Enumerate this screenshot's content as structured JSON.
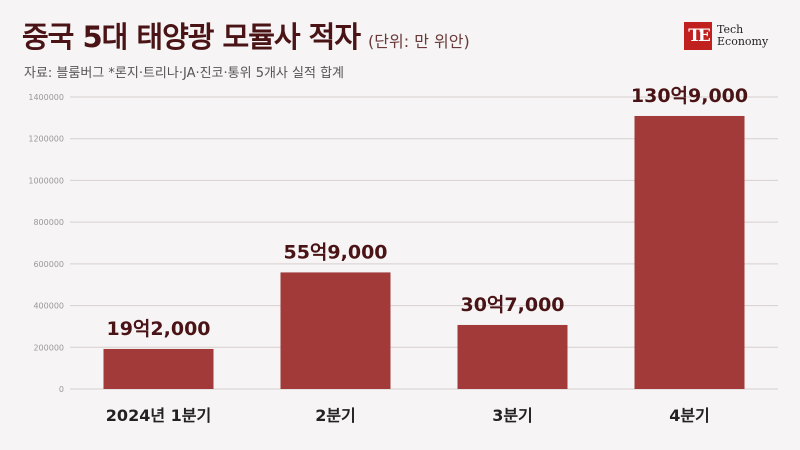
{
  "header": {
    "title": "중국 5대 태양광 모듈사 적자",
    "unit": "(단위: 만 위안)",
    "source": "자료: 블룸버그  *론지·트리나·JA·진코·통위 5개사 실적 합계"
  },
  "logo": {
    "mark": "TE",
    "line1": "Tech",
    "line2": "Economy"
  },
  "colors": {
    "bar": "#a33a3a",
    "grid": "#d8cfcf",
    "axis_text": "#999999",
    "label": "#4a1416"
  },
  "chart_data": {
    "type": "bar",
    "title": "중국 5대 태양광 모듈사 적자",
    "xlabel": "",
    "ylabel": "",
    "categories": [
      "2024년 1분기",
      "2분기",
      "3분기",
      "4분기"
    ],
    "values": [
      192000,
      559000,
      307000,
      1309000
    ],
    "data_labels": [
      "19억2,000",
      "55억9,000",
      "30억7,000",
      "130억9,000"
    ],
    "ylim": [
      0,
      1400000
    ],
    "yticks": [
      0,
      200000,
      400000,
      600000,
      800000,
      1000000,
      1200000,
      1400000
    ],
    "ytick_labels": [
      "0",
      "200000",
      "400000",
      "600000",
      "800000",
      "1000000",
      "1200000",
      "1400000"
    ],
    "grid": true
  }
}
